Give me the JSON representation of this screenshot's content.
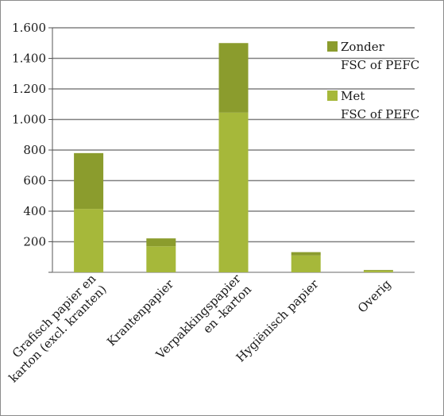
{
  "chart_data": {
    "type": "bar",
    "stacked": true,
    "categories": [
      [
        "Grafisch papier en",
        "karton  (excl. kranten)"
      ],
      [
        "Krantenpapier"
      ],
      [
        "Verpakkingspapier",
        "en -karton"
      ],
      [
        "Hygiënisch papier"
      ],
      [
        "Overig"
      ]
    ],
    "series": [
      {
        "name": "Met\nFSC of PEFC",
        "values": [
          415,
          170,
          1045,
          110,
          10
        ],
        "color": "#a6b83a"
      },
      {
        "name": "Zonder\nFSC of PEFC",
        "values": [
          365,
          52,
          455,
          22,
          5
        ],
        "color": "#8b9c2d"
      }
    ],
    "legend_order": [
      1,
      0
    ],
    "ylim": [
      0,
      1600
    ],
    "yticks": [
      0,
      200,
      400,
      600,
      800,
      1000,
      1200,
      1400,
      1600
    ],
    "ytick_labels": [
      "",
      "200",
      "400",
      "600",
      "800",
      "1.000",
      "1.200",
      "1.400",
      "1.600"
    ],
    "gridlines": true,
    "legend_position": "right",
    "title": "",
    "xlabel": "",
    "ylabel": ""
  }
}
